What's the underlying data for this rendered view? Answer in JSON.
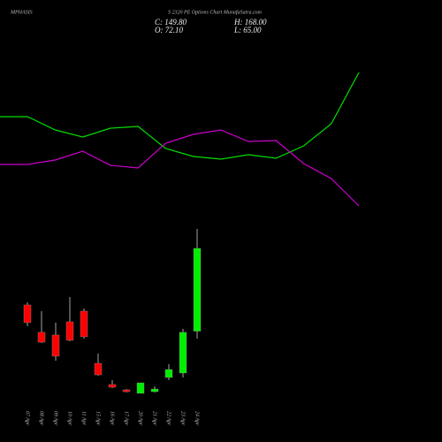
{
  "chart_data": [
    {
      "type": "line",
      "title": "MPHASIS",
      "subtitle": "S 2320  PE Options Chart MunafaSutra.com",
      "annotations": [
        "C: 149.80",
        "H: 168.00",
        "O: 72.10",
        "L: 65.00"
      ],
      "x": [
        0,
        1,
        2,
        3,
        4,
        5,
        6,
        7,
        8,
        9,
        10,
        11,
        12,
        13
      ],
      "xlim": [
        0,
        13
      ],
      "ylim": [
        0,
        200
      ],
      "series": [
        {
          "color": "#00dd00",
          "values": [
            118,
            118,
            103,
            95,
            105,
            107,
            82,
            73,
            70,
            75,
            71,
            85,
            110,
            168
          ]
        },
        {
          "color": "#cc00cc",
          "values": [
            64,
            64,
            69,
            79,
            63,
            60,
            88,
            98,
            103,
            90,
            91,
            65,
            48,
            17
          ]
        }
      ]
    },
    {
      "type": "candlestick",
      "categories": [
        "07 Apr",
        "08 Apr",
        "09 Apr",
        "10 Apr",
        "11 Apr",
        "15 Apr",
        "16 Apr",
        "17 Apr",
        "20 Apr",
        "21 Apr",
        "22 Apr",
        "23 Apr",
        "24 Apr"
      ],
      "open": [
        96.7,
        71.0,
        68.5,
        80.9,
        90.9,
        41.9,
        22.0,
        17.0,
        13.7,
        15.3,
        28.6,
        32.8,
        72.1
      ],
      "high": [
        99.2,
        90.9,
        80.1,
        104.1,
        93.4,
        51.0,
        26.1,
        17.8,
        23.6,
        20.3,
        41.1,
        74.3,
        168.0
      ],
      "low": [
        76.8,
        61.0,
        44.4,
        62.7,
        65.1,
        30.3,
        18.7,
        14.5,
        13.7,
        14.5,
        26.1,
        28.6,
        65.0
      ],
      "close": [
        80.1,
        61.8,
        48.6,
        63.5,
        66.8,
        31.1,
        19.5,
        15.3,
        23.6,
        17.8,
        36.1,
        71.0,
        149.8
      ],
      "up_color": "#00ee00",
      "down_color": "#ff0000",
      "ylim": [
        0,
        175.5
      ]
    }
  ]
}
